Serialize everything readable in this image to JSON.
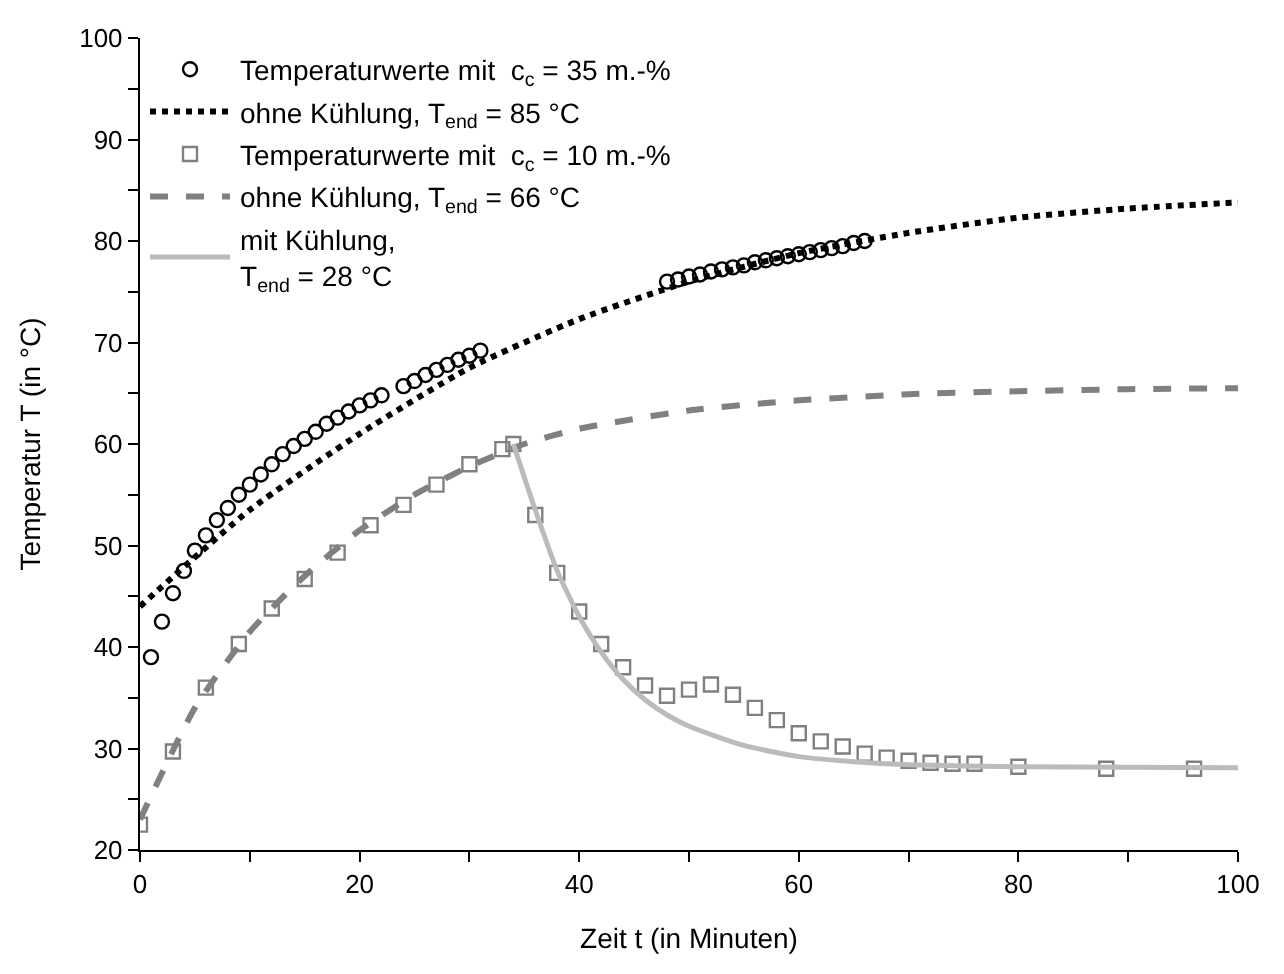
{
  "chart_data": {
    "type": "scatter",
    "xlabel": "Zeit t (in Minuten)",
    "ylabel": "Temperatur T (in °C)",
    "xlim": [
      0,
      100
    ],
    "ylim": [
      20,
      100
    ],
    "xticks": [
      0,
      {
        "value": 10,
        "label": null
      },
      20,
      {
        "value": 30,
        "label": null
      },
      40,
      {
        "value": 50,
        "label": null
      },
      60,
      {
        "value": 70,
        "label": null
      },
      80,
      {
        "value": 90,
        "label": null
      },
      100
    ],
    "yticks": [
      20,
      {
        "value": 25,
        "label": null
      },
      30,
      {
        "value": 35,
        "label": null
      },
      40,
      {
        "value": 45,
        "label": null
      },
      50,
      {
        "value": 55,
        "label": null
      },
      60,
      {
        "value": 65,
        "label": null
      },
      70,
      {
        "value": 75,
        "label": null
      },
      80,
      {
        "value": 85,
        "label": null
      },
      90,
      {
        "value": 95,
        "label": null
      },
      100
    ],
    "grid": false,
    "legend": "top left",
    "series": [
      {
        "name": "Temperaturwerte mit  c$_{c}$ = 35 m.-%",
        "marker": "circle",
        "color": "#000000",
        "x": [
          1,
          2,
          3,
          4,
          5,
          6,
          7,
          8,
          9,
          10,
          11,
          12,
          13,
          14,
          15,
          16,
          17,
          18,
          19,
          20,
          21,
          22,
          24,
          25,
          26,
          27,
          28,
          29,
          30,
          31,
          48,
          49,
          50,
          51,
          52,
          53,
          54,
          55,
          56,
          57,
          58,
          59,
          60,
          61,
          62,
          63,
          64,
          65,
          66
        ],
        "values": [
          39,
          42.5,
          45.3,
          47.5,
          49.5,
          51,
          52.5,
          53.7,
          55,
          56,
          57,
          58,
          59,
          59.8,
          60.5,
          61.2,
          62,
          62.6,
          63.2,
          63.8,
          64.3,
          64.8,
          65.7,
          66.2,
          66.8,
          67.3,
          67.8,
          68.3,
          68.7,
          69.2,
          76,
          76.2,
          76.5,
          76.7,
          77,
          77.2,
          77.4,
          77.6,
          77.9,
          78.1,
          78.3,
          78.5,
          78.7,
          78.9,
          79.1,
          79.3,
          79.5,
          79.8,
          80
        ]
      },
      {
        "name": "ohne Kühlung, T$_{end}$ = 85 °C",
        "type": "line",
        "line_style": "dotted",
        "color": "#000000",
        "x": [
          0,
          10,
          20,
          30,
          40,
          50,
          60,
          70,
          80,
          90,
          100
        ],
        "values": [
          44,
          53.5,
          61,
          67.5,
          72.3,
          76,
          78.8,
          80.8,
          82.3,
          83.2,
          83.8
        ]
      },
      {
        "name": "Temperaturwerte mit  c$_{c}$ = 10 m.-%",
        "marker": "square",
        "color": "#808080",
        "x": [
          0,
          3,
          6,
          9,
          12,
          15,
          18,
          21,
          24,
          27,
          30,
          33,
          34,
          36,
          38,
          40,
          42,
          44,
          46,
          48,
          50,
          52,
          54,
          56,
          58,
          60,
          62,
          64,
          66,
          68,
          70,
          72,
          74,
          76,
          80,
          88,
          96
        ],
        "values": [
          22.5,
          29.7,
          36,
          40.3,
          43.8,
          46.7,
          49.3,
          52,
          54,
          56,
          58,
          59.5,
          60,
          53,
          47.3,
          43.5,
          40.3,
          38,
          36.2,
          35.2,
          35.8,
          36.3,
          35.3,
          34,
          32.8,
          31.5,
          30.7,
          30.2,
          29.5,
          29.1,
          28.8,
          28.6,
          28.5,
          28.5,
          28.2,
          28,
          28
        ]
      },
      {
        "name": "ohne Kühlung, T$_{end}$ = 66 °C",
        "type": "line",
        "line_style": "dashed",
        "color": "#808080",
        "x": [
          0,
          5,
          10,
          15,
          20,
          25,
          30,
          35,
          40,
          50,
          60,
          70,
          80,
          90,
          100
        ],
        "values": [
          23,
          34,
          41.5,
          47,
          51.5,
          55,
          57.8,
          60,
          61.5,
          63.3,
          64.3,
          64.9,
          65.2,
          65.4,
          65.5
        ]
      },
      {
        "name": "mit Kühlung,\nT$_{end}$ = 28 °C",
        "type": "line",
        "line_style": "solid",
        "color": "#bbbbbb",
        "x": [
          34,
          36,
          38,
          40,
          42,
          44,
          46,
          48,
          50,
          55,
          60,
          65,
          70,
          80,
          100
        ],
        "values": [
          60,
          53.5,
          47.5,
          43,
          39.5,
          36.8,
          34.8,
          33.3,
          32.2,
          30.3,
          29.2,
          28.7,
          28.4,
          28.2,
          28.1
        ]
      }
    ]
  }
}
